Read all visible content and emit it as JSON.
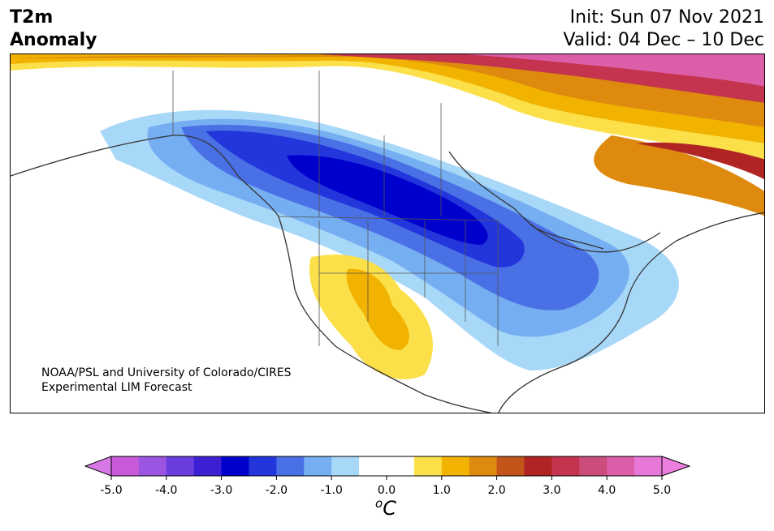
{
  "header": {
    "title_line1": "T2m",
    "title_line2": "Anomaly",
    "init": "Init: Sun 07 Nov 2021",
    "valid": "Valid: 04 Dec – 10 Dec"
  },
  "credit": {
    "line1": "NOAA/PSL and University of Colorado/CIRES",
    "line2": "Experimental LIM Forecast"
  },
  "colorbar": {
    "unit_sup": "o",
    "unit": "C",
    "ticks": [
      "-5.0",
      "-4.0",
      "-3.0",
      "-2.0",
      "-1.0",
      "0.0",
      "1.0",
      "2.0",
      "3.0",
      "4.0",
      "5.0"
    ],
    "colors": [
      "#c75ad8",
      "#9b55e2",
      "#6a3ddf",
      "#3d1fd4",
      "#0000cc",
      "#2236dc",
      "#4a70e6",
      "#76aef2",
      "#a8d8f8",
      "#ffffff",
      "#ffffff",
      "#fbe04a",
      "#f2b200",
      "#dd8a0e",
      "#c4551a",
      "#b02424",
      "#c4344f",
      "#cc4c7c",
      "#dc5ea8",
      "#e878d8"
    ],
    "under_color": "#d678e6",
    "over_color": "#ec7ee0"
  }
}
